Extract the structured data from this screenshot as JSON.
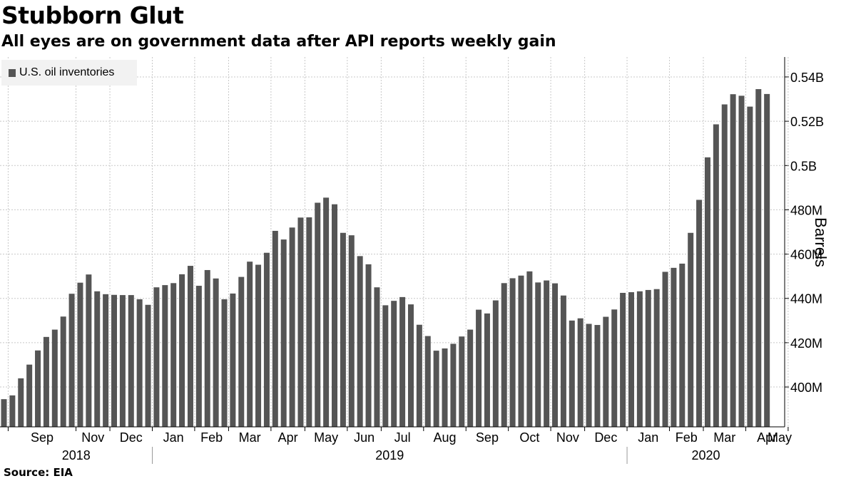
{
  "title": "Stubborn Glut",
  "subtitle": "All eyes are on government data after API reports weekly gain",
  "source": "Source: EIA",
  "colors": {
    "bar": "#555555",
    "grid": "#c8c8c8",
    "legend_bg": "#f2f2f2"
  },
  "chart_data": {
    "type": "bar",
    "title": "Stubborn Glut",
    "subtitle": "All eyes are on government data after API reports weekly gain",
    "ylabel": "Barrels",
    "y_axis_side": "right",
    "ylim": [
      382,
      549
    ],
    "yticks": [
      {
        "value": 400,
        "label": "400M"
      },
      {
        "value": 420,
        "label": "420M"
      },
      {
        "value": 440,
        "label": "440M"
      },
      {
        "value": 460,
        "label": "460M"
      },
      {
        "value": 480,
        "label": "480M"
      },
      {
        "value": 500,
        "label": "0.5B"
      },
      {
        "value": 520,
        "label": "0.52B"
      },
      {
        "value": 540,
        "label": "0.54B"
      }
    ],
    "grid": true,
    "legend": {
      "position": "top-left",
      "entries": [
        "U.S. oil inventories"
      ]
    },
    "month_labels": [
      "Sep",
      "Nov",
      "Dec",
      "Jan",
      "Feb",
      "Mar",
      "Apr",
      "May",
      "Jun",
      "Jul",
      "Aug",
      "Sep",
      "Oct",
      "Nov",
      "Dec",
      "Jan",
      "Feb",
      "Mar",
      "Apr",
      "May"
    ],
    "month_start_index": [
      1,
      9,
      13,
      18,
      23,
      27,
      32,
      36,
      41,
      45,
      50,
      55,
      60,
      65,
      69,
      74,
      79,
      83,
      88,
      93
    ],
    "year_labels": [
      {
        "label": "2018",
        "start_index": 0,
        "end_index": 17
      },
      {
        "label": "2019",
        "start_index": 18,
        "end_index": 73
      },
      {
        "label": "2020",
        "start_index": 74,
        "end_index": 98
      }
    ],
    "series": [
      {
        "name": "U.S. oil inventories",
        "unit": "million barrels",
        "values": [
          394.5,
          396.2,
          403.9,
          410.1,
          416.5,
          422.6,
          425.9,
          431.8,
          442.1,
          447.1,
          450.8,
          443.2,
          441.9,
          441.6,
          441.5,
          441.5,
          439.6,
          437.1,
          445.0,
          446.0,
          446.9,
          450.9,
          454.7,
          445.7,
          452.8,
          449.0,
          439.6,
          442.2,
          449.7,
          456.6,
          455.2,
          460.6,
          470.5,
          466.6,
          472.0,
          476.5,
          476.6,
          483.2,
          485.5,
          482.5,
          469.6,
          468.5,
          459.1,
          455.4,
          445.0,
          436.9,
          438.9,
          440.6,
          437.3,
          428.1,
          423.0,
          416.4,
          417.4,
          419.5,
          422.8,
          425.9,
          434.9,
          433.2,
          439.1,
          446.9,
          449.1,
          450.3,
          452.2,
          447.2,
          448.1,
          446.8,
          441.3,
          430.0,
          431.0,
          428.5,
          428.0,
          431.7,
          435.0,
          442.5,
          442.8,
          443.2,
          443.8,
          444.2,
          452.0,
          453.8,
          455.7,
          469.6,
          484.5,
          503.7,
          518.6,
          527.6,
          532.2,
          531.5,
          526.6,
          534.5,
          532.3
        ]
      }
    ]
  }
}
